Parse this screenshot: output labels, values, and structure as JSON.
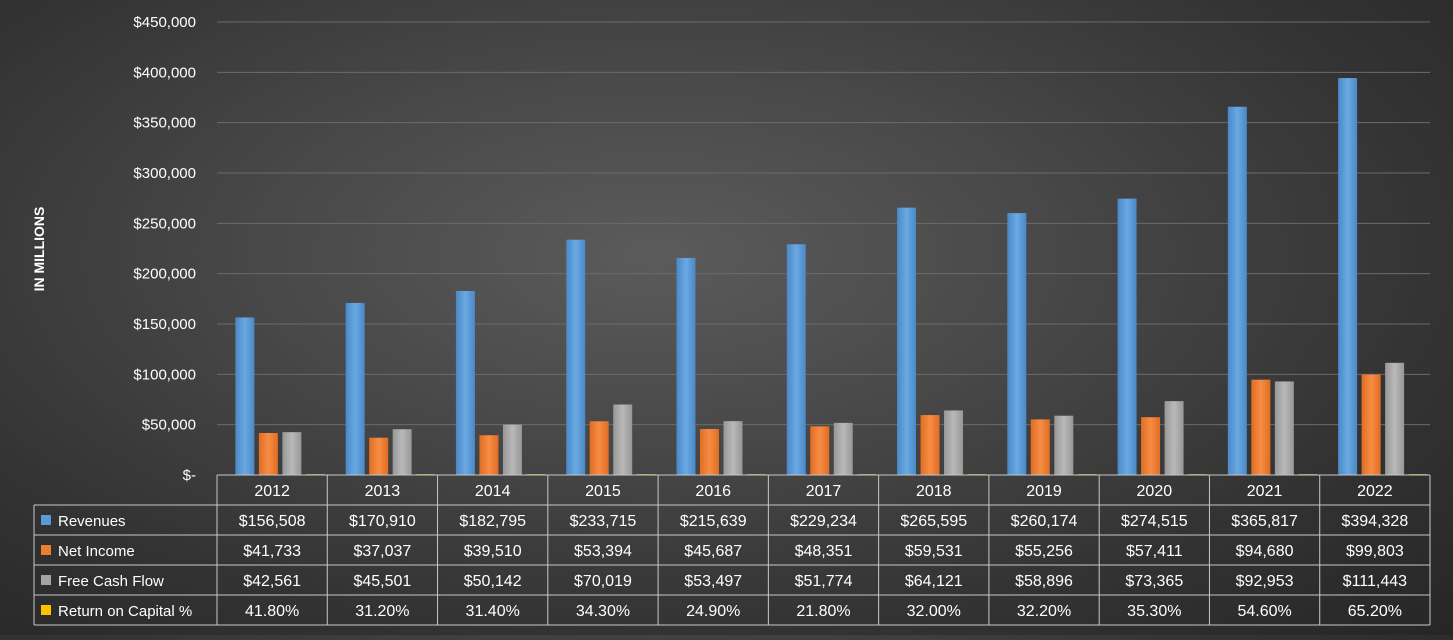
{
  "chart_data": {
    "type": "bar",
    "ylabel": "IN MILLIONS",
    "ylim": [
      0,
      450000
    ],
    "y_ticks": [
      0,
      50000,
      100000,
      150000,
      200000,
      250000,
      300000,
      350000,
      400000,
      450000
    ],
    "y_tick_labels": [
      "$-",
      "$50,000",
      "$100,000",
      "$150,000",
      "$200,000",
      "$250,000",
      "$300,000",
      "$350,000",
      "$400,000",
      "$450,000"
    ],
    "grid": true,
    "legend": "data-table",
    "categories": [
      "2012",
      "2013",
      "2014",
      "2015",
      "2016",
      "2017",
      "2018",
      "2019",
      "2020",
      "2021",
      "2022"
    ],
    "series": [
      {
        "name": "Revenues",
        "color": "#5b9bd5",
        "values": [
          156508,
          170910,
          182795,
          233715,
          215639,
          229234,
          265595,
          260174,
          274515,
          365817,
          394328
        ],
        "labels": [
          "$156,508",
          "$170,910",
          "$182,795",
          "$233,715",
          "$215,639",
          "$229,234",
          "$265,595",
          "$260,174",
          "$274,515",
          "$365,817",
          "$394,328"
        ]
      },
      {
        "name": "Net Income",
        "color": "#ed7d31",
        "values": [
          41733,
          37037,
          39510,
          53394,
          45687,
          48351,
          59531,
          55256,
          57411,
          94680,
          99803
        ],
        "labels": [
          "$41,733",
          "$37,037",
          "$39,510",
          "$53,394",
          "$45,687",
          "$48,351",
          "$59,531",
          "$55,256",
          "$57,411",
          "$94,680",
          "$99,803"
        ]
      },
      {
        "name": "Free Cash Flow",
        "color": "#a5a5a5",
        "values": [
          42561,
          45501,
          50142,
          70019,
          53497,
          51774,
          64121,
          58896,
          73365,
          92953,
          111443
        ],
        "labels": [
          "$42,561",
          "$45,501",
          "$50,142",
          "$70,019",
          "$53,497",
          "$51,774",
          "$64,121",
          "$58,896",
          "$73,365",
          "$92,953",
          "$111,443"
        ]
      },
      {
        "name": "Return on Capital %",
        "color": "#ffc000",
        "values": [
          41.8,
          31.2,
          31.4,
          34.3,
          24.9,
          21.8,
          32.0,
          32.2,
          35.3,
          54.6,
          65.2
        ],
        "labels": [
          "41.80%",
          "31.20%",
          "31.40%",
          "34.30%",
          "24.90%",
          "21.80%",
          "32.00%",
          "32.20%",
          "35.30%",
          "54.60%",
          "65.20%"
        ]
      }
    ]
  }
}
